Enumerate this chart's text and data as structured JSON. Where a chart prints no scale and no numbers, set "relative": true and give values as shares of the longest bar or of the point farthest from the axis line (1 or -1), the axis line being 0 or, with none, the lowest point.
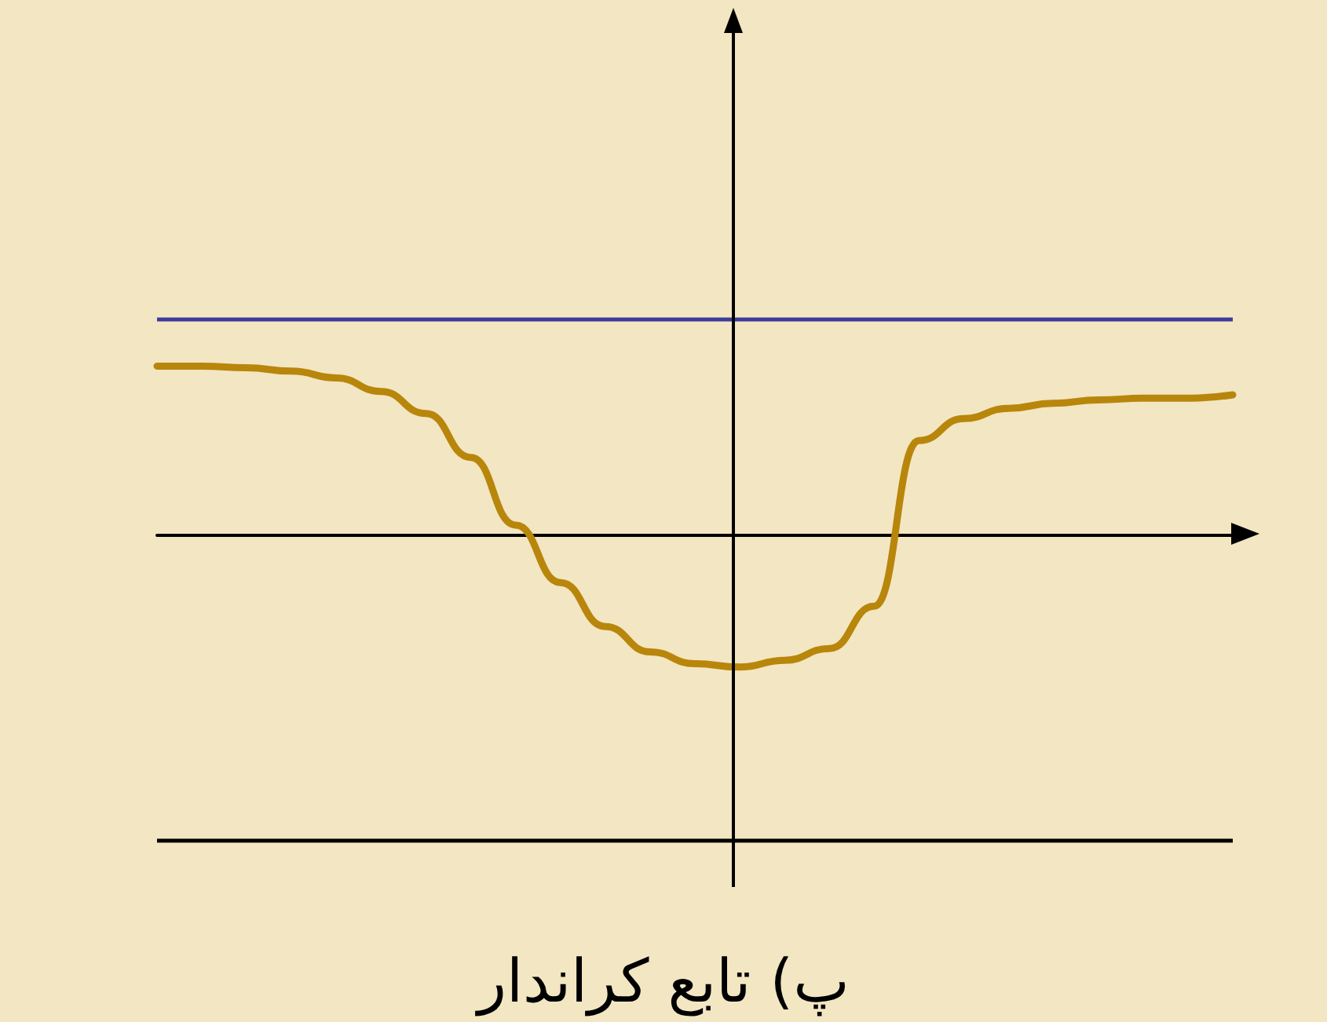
{
  "chart_data": {
    "type": "line",
    "title": "پ) تابع کراندار",
    "relative": true,
    "categories": [
      null,
      null,
      null,
      null,
      null,
      null,
      null,
      null,
      null,
      null,
      null,
      null,
      null,
      null,
      null,
      null,
      null,
      null,
      null,
      null,
      null,
      null,
      null,
      null,
      null
    ],
    "series": [
      {
        "color": "#b8860b",
        "values": [
          1.0,
          1.0,
          0.99,
          0.97,
          0.93,
          0.85,
          0.72,
          0.46,
          0.06,
          -0.28,
          -0.54,
          -0.69,
          -0.76,
          -0.78,
          -0.74,
          -0.67,
          -0.42,
          0.56,
          0.69,
          0.75,
          0.78,
          0.8,
          0.81,
          0.81,
          0.83
        ]
      }
    ],
    "ref_lines": [
      {
        "axis": "y",
        "value": 1.28,
        "color": "#3b3b98"
      },
      {
        "axis": "y",
        "value": -1.8,
        "color": "#000000"
      }
    ],
    "grid": false,
    "marker": "none",
    "line_style": "solid"
  }
}
